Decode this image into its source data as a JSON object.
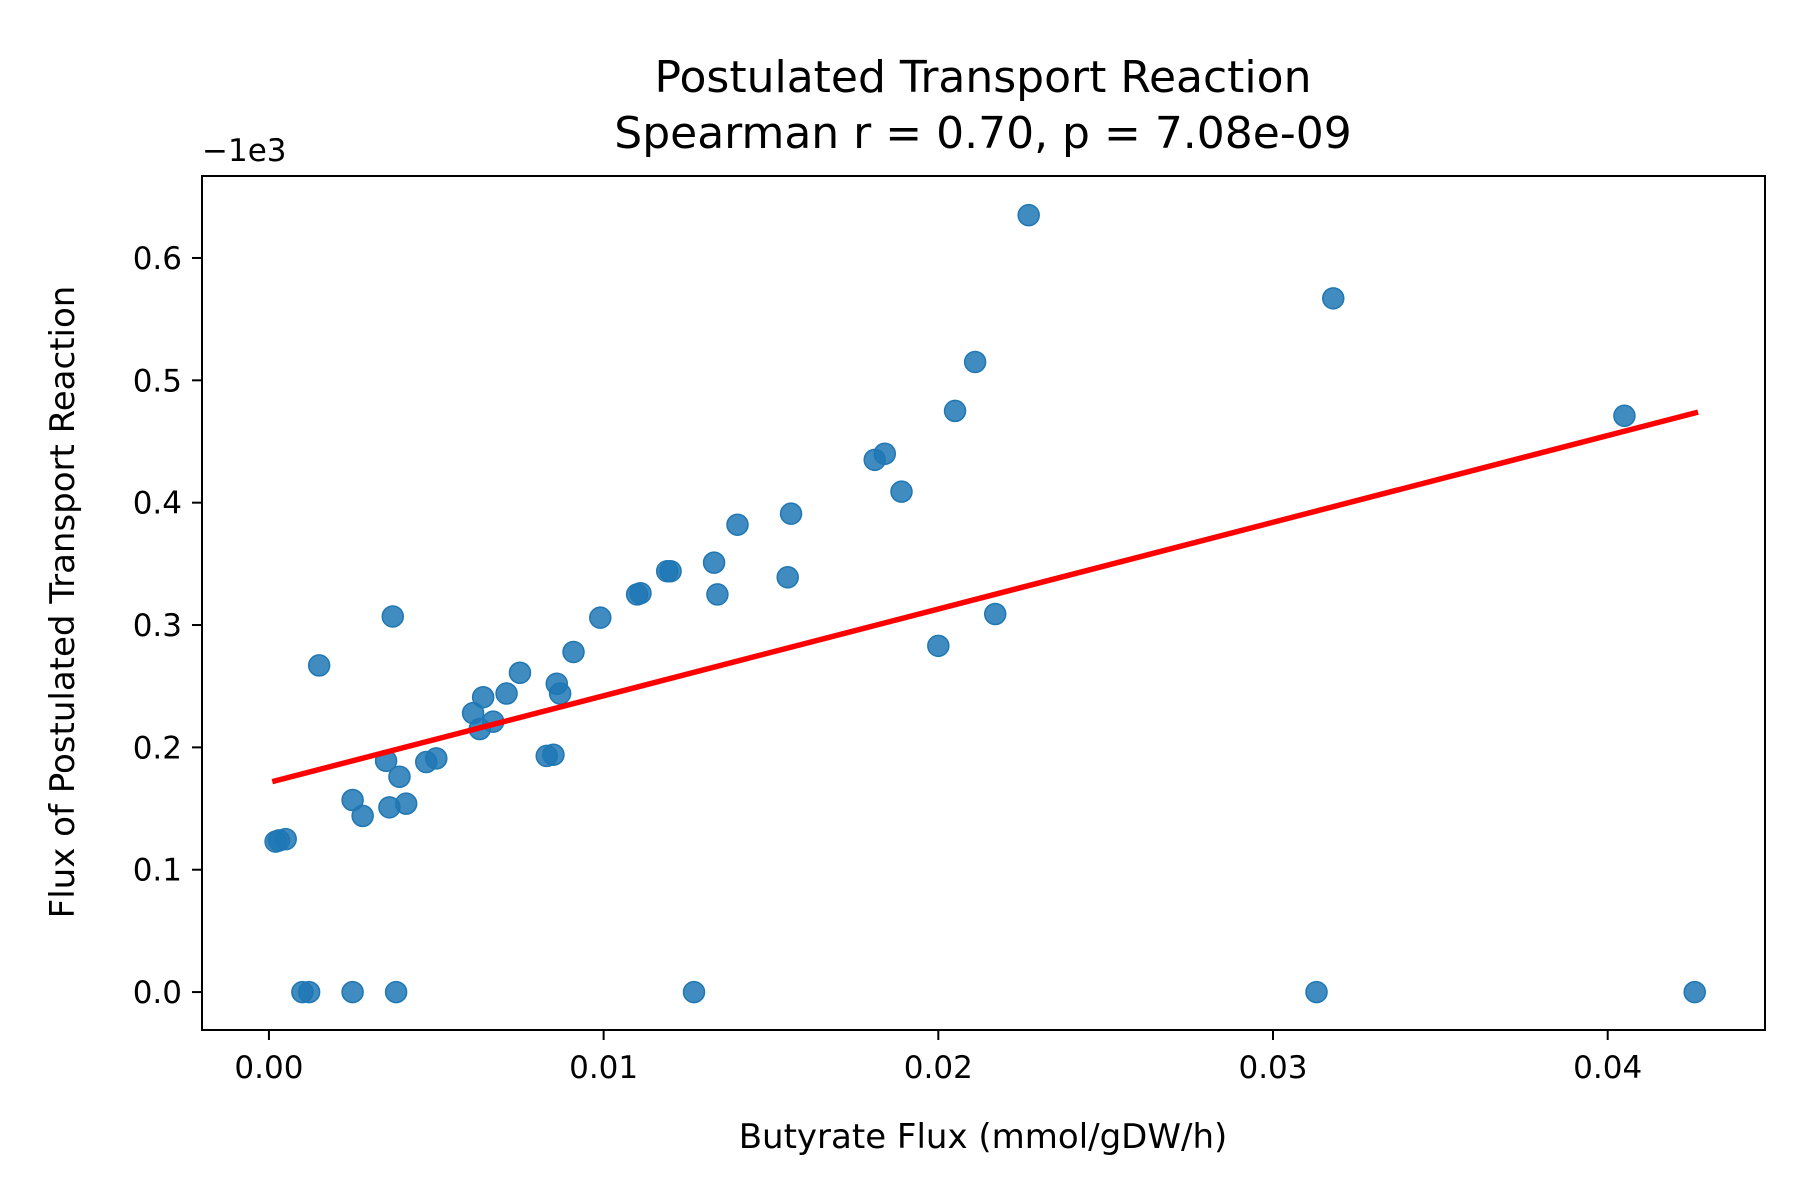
{
  "chart_data": {
    "type": "scatter",
    "title": "Postulated Transport Reaction",
    "subtitle": "Spearman r = 0.70, p = 7.08e-09",
    "xlabel": "Butyrate Flux (mmol/gDW/h)",
    "ylabel": "Flux of Postulated Transport Reaction",
    "y_offset_label": "−1e3",
    "xlim": [
      -0.002,
      0.0447
    ],
    "ylim": [
      -0.031,
      0.667
    ],
    "x_ticks": [
      0.0,
      0.01,
      0.02,
      0.03,
      0.04
    ],
    "x_tick_labels": [
      "0.00",
      "0.01",
      "0.02",
      "0.03",
      "0.04"
    ],
    "y_ticks": [
      0.0,
      0.1,
      0.2,
      0.3,
      0.4,
      0.5,
      0.6
    ],
    "y_tick_labels": [
      "0.0",
      "0.1",
      "0.2",
      "0.3",
      "0.4",
      "0.5",
      "0.6"
    ],
    "grid": false,
    "colors": {
      "points": "#1f77b4",
      "fit_line": "#ff0000",
      "axes": "#000000"
    },
    "series": [
      {
        "kind": "scatter",
        "points": [
          [
            0.0002,
            0.123
          ],
          [
            0.0003,
            0.124
          ],
          [
            0.0005,
            0.125
          ],
          [
            0.0015,
            0.267
          ],
          [
            0.0025,
            0.157
          ],
          [
            0.0028,
            0.144
          ],
          [
            0.0035,
            0.189
          ],
          [
            0.0036,
            0.151
          ],
          [
            0.0037,
            0.307
          ],
          [
            0.0039,
            0.176
          ],
          [
            0.0041,
            0.154
          ],
          [
            0.0047,
            0.188
          ],
          [
            0.005,
            0.191
          ],
          [
            0.0061,
            0.228
          ],
          [
            0.0063,
            0.215
          ],
          [
            0.0064,
            0.241
          ],
          [
            0.0067,
            0.221
          ],
          [
            0.0071,
            0.244
          ],
          [
            0.0075,
            0.261
          ],
          [
            0.0083,
            0.193
          ],
          [
            0.0085,
            0.194
          ],
          [
            0.0086,
            0.252
          ],
          [
            0.0087,
            0.244
          ],
          [
            0.0091,
            0.278
          ],
          [
            0.0099,
            0.306
          ],
          [
            0.011,
            0.325
          ],
          [
            0.0111,
            0.326
          ],
          [
            0.0119,
            0.344
          ],
          [
            0.012,
            0.344
          ],
          [
            0.0133,
            0.351
          ],
          [
            0.0134,
            0.325
          ],
          [
            0.014,
            0.382
          ],
          [
            0.0155,
            0.339
          ],
          [
            0.0156,
            0.391
          ],
          [
            0.0181,
            0.435
          ],
          [
            0.0184,
            0.44
          ],
          [
            0.0189,
            0.409
          ],
          [
            0.02,
            0.283
          ],
          [
            0.0205,
            0.475
          ],
          [
            0.0211,
            0.515
          ],
          [
            0.0217,
            0.309
          ],
          [
            0.0227,
            0.635
          ],
          [
            0.0318,
            0.567
          ],
          [
            0.0405,
            0.471
          ],
          [
            0.001,
            0.0
          ],
          [
            0.0012,
            0.0
          ],
          [
            0.0025,
            0.0
          ],
          [
            0.0038,
            0.0
          ],
          [
            0.0127,
            0.0
          ],
          [
            0.0313,
            0.0
          ],
          [
            0.0426,
            0.0
          ]
        ]
      },
      {
        "kind": "line",
        "points": [
          [
            0.0001,
            0.172
          ],
          [
            0.0427,
            0.474
          ]
        ]
      }
    ]
  }
}
